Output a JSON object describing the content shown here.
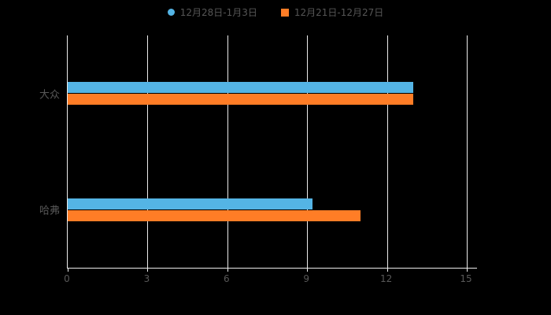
{
  "legend": {
    "items": [
      {
        "label": "12月28日-1月3日",
        "color": "#54b4e5",
        "marker": "circle"
      },
      {
        "label": "12月21日-12月27日",
        "color": "#ff7d26",
        "marker": "square"
      }
    ]
  },
  "chart_data": {
    "type": "bar",
    "orientation": "horizontal",
    "title": "",
    "categories": [
      "大众",
      "哈弗"
    ],
    "series": [
      {
        "name": "12月28日-1月3日",
        "color": "#54b4e5",
        "values": [
          13,
          9.2
        ]
      },
      {
        "name": "12月21日-12月27日",
        "color": "#ff7d26",
        "values": [
          13,
          11
        ]
      }
    ],
    "xticks": [
      "0",
      "3",
      "6",
      "9",
      "12",
      "15"
    ],
    "xlim": [
      0,
      15
    ],
    "grid": true,
    "legend_position": "top",
    "background": "#000000",
    "axis_color": "#ececec",
    "text_color": "#585858"
  }
}
